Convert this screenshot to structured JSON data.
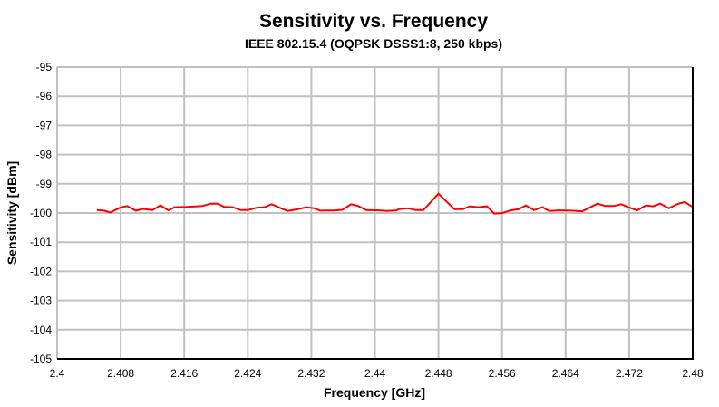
{
  "chart_data": {
    "type": "line",
    "title": "Sensitivity vs. Frequency",
    "subtitle": "IEEE 802.15.4 (OQPSK DSSS1:8, 250 kbps)",
    "xlabel": "Frequency [GHz]",
    "ylabel": "Sensitivity [dBm]",
    "xlim": [
      2.4,
      2.48
    ],
    "ylim": [
      -105,
      -95
    ],
    "grid": true,
    "line_color": "#ff0000",
    "xticks": [
      "2.4",
      "2.408",
      "2.416",
      "2.424",
      "2.432",
      "2.44",
      "2.448",
      "2.456",
      "2.464",
      "2.472",
      "2.48"
    ],
    "yticks": [
      "-95",
      "-96",
      "-97",
      "-98",
      "-99",
      "-100",
      "-101",
      "-102",
      "-103",
      "-104",
      "-105"
    ],
    "series": [
      {
        "x": [
          2.405,
          2.4059,
          2.4067,
          2.4079,
          2.4088,
          2.4099,
          2.4108,
          2.412,
          2.413,
          2.414,
          2.4148,
          2.4164,
          2.4183,
          2.4193,
          2.4202,
          2.421,
          2.4221,
          2.4231,
          2.424,
          2.4251,
          2.4261,
          2.427,
          2.428,
          2.429,
          2.4301,
          2.4314,
          2.4324,
          2.4331,
          2.435,
          2.4359,
          2.437,
          2.4379,
          2.4389,
          2.4405,
          2.4415,
          2.4427,
          2.443,
          2.4442,
          2.4451,
          2.4461,
          2.448,
          2.45,
          2.4511,
          2.4519,
          2.453,
          2.4541,
          2.455,
          2.4559,
          2.4571,
          2.4581,
          2.459,
          2.46,
          2.4611,
          2.4619,
          2.4632,
          2.4647,
          2.4661,
          2.467,
          2.468,
          2.469,
          2.4701,
          2.471,
          2.4719,
          2.473,
          2.4741,
          2.475,
          2.4759,
          2.477,
          2.4781,
          2.479,
          2.4799
        ],
        "y": [
          -99.9,
          -99.92,
          -99.98,
          -99.82,
          -99.76,
          -99.92,
          -99.86,
          -99.9,
          -99.74,
          -99.91,
          -99.8,
          -99.79,
          -99.76,
          -99.68,
          -99.68,
          -99.79,
          -99.8,
          -99.9,
          -99.9,
          -99.82,
          -99.8,
          -99.7,
          -99.82,
          -99.93,
          -99.88,
          -99.8,
          -99.84,
          -99.92,
          -99.91,
          -99.89,
          -99.7,
          -99.76,
          -99.9,
          -99.91,
          -99.93,
          -99.91,
          -99.87,
          -99.84,
          -99.9,
          -99.9,
          -99.34,
          -99.87,
          -99.87,
          -99.77,
          -99.8,
          -99.77,
          -100.02,
          -100.01,
          -99.91,
          -99.87,
          -99.74,
          -99.9,
          -99.8,
          -99.93,
          -99.91,
          -99.92,
          -99.94,
          -99.82,
          -99.68,
          -99.76,
          -99.76,
          -99.7,
          -99.8,
          -99.91,
          -99.74,
          -99.77,
          -99.68,
          -99.84,
          -99.69,
          -99.62,
          -99.78
        ]
      }
    ]
  }
}
